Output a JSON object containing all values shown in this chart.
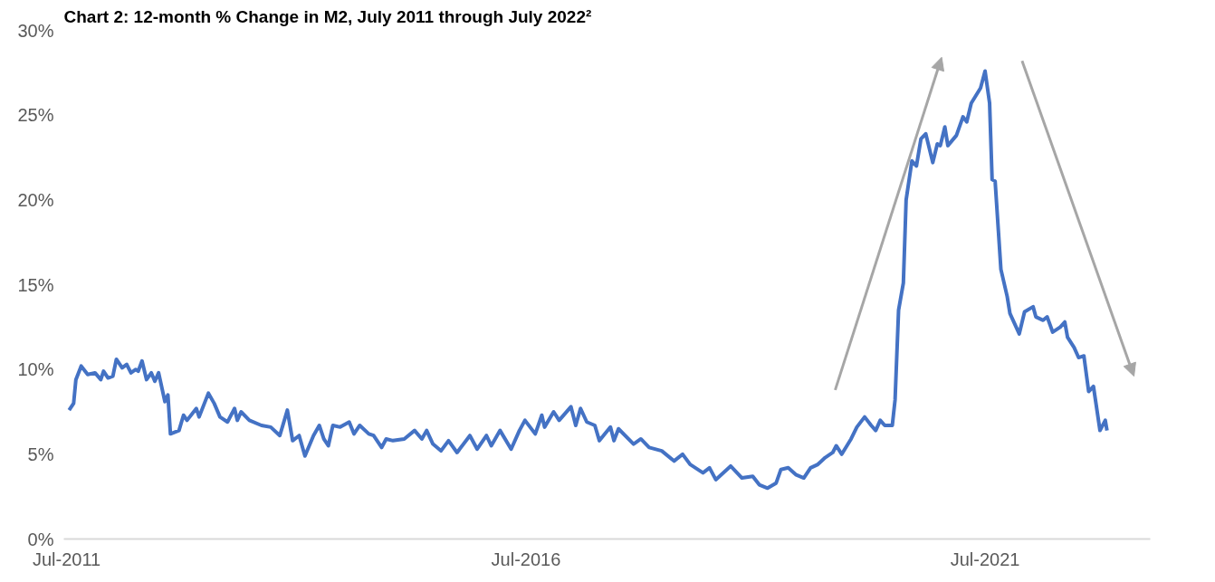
{
  "chart_data": {
    "type": "line",
    "title": "Chart 2: 12-month % Change in M2, July 2011 through July 2022²",
    "xlim": [
      "2011-06-20",
      "2023-04-19"
    ],
    "ylim": [
      0,
      30
    ],
    "xticks": [
      {
        "value": "2011-07-01",
        "label": "Jul-2011"
      },
      {
        "value": "2016-07-01",
        "label": "Jul-2016"
      },
      {
        "value": "2021-07-01",
        "label": "Jul-2021"
      }
    ],
    "yticks": [
      {
        "value": 0,
        "label": "0%"
      },
      {
        "value": 5,
        "label": "5%"
      },
      {
        "value": 10,
        "label": "10%"
      },
      {
        "value": 15,
        "label": "15%"
      },
      {
        "value": 20,
        "label": "20%"
      },
      {
        "value": 25,
        "label": "25%"
      },
      {
        "value": 30,
        "label": "30%"
      }
    ],
    "grid": false,
    "line_style": "solid",
    "series": [
      {
        "color": "#4472c4",
        "x": [
          "2011-07-11",
          "2011-07-29",
          "2011-08-07",
          "2011-08-28",
          "2011-09-23",
          "2011-10-22",
          "2011-11-14",
          "2011-11-25",
          "2011-12-13",
          "2012-01-01",
          "2012-01-15",
          "2012-02-07",
          "2012-02-25",
          "2012-03-13",
          "2012-04-01",
          "2012-04-11",
          "2012-04-26",
          "2012-05-14",
          "2012-06-02",
          "2012-06-16",
          "2012-07-01",
          "2012-07-26",
          "2012-08-07",
          "2012-08-17",
          "2012-09-20",
          "2012-10-08",
          "2012-10-22",
          "2012-11-28",
          "2012-12-09",
          "2013-01-15",
          "2013-02-07",
          "2013-03-02",
          "2013-04-01",
          "2013-04-29",
          "2013-05-10",
          "2013-05-25",
          "2013-06-27",
          "2013-08-14",
          "2013-09-20",
          "2013-10-26",
          "2013-11-25",
          "2013-12-16",
          "2014-01-11",
          "2014-02-03",
          "2014-03-09",
          "2014-04-01",
          "2014-04-19",
          "2014-05-07",
          "2014-05-25",
          "2014-06-23",
          "2014-07-29",
          "2014-08-17",
          "2014-09-09",
          "2014-10-15",
          "2014-11-03",
          "2014-12-05",
          "2014-12-23",
          "2015-01-19",
          "2015-03-05",
          "2015-04-15",
          "2015-05-14",
          "2015-06-02",
          "2015-06-27",
          "2015-07-29",
          "2015-08-28",
          "2015-10-01",
          "2015-11-21",
          "2015-12-20",
          "2016-01-26",
          "2016-02-14",
          "2016-03-20",
          "2016-05-03",
          "2016-06-05",
          "2016-06-27",
          "2016-08-07",
          "2016-09-02",
          "2016-09-13",
          "2016-10-19",
          "2016-11-10",
          "2016-12-27",
          "2017-01-15",
          "2017-02-03",
          "2017-02-28",
          "2017-04-01",
          "2017-04-19",
          "2017-06-02",
          "2017-06-16",
          "2017-07-04",
          "2017-09-02",
          "2017-10-01",
          "2017-11-03",
          "2017-12-23",
          "2018-02-10",
          "2018-03-16",
          "2018-04-15",
          "2018-06-05",
          "2018-07-01",
          "2018-07-26",
          "2018-09-23",
          "2018-11-07",
          "2018-12-20",
          "2019-01-15",
          "2019-02-17",
          "2019-03-23",
          "2019-04-11",
          "2019-05-10",
          "2019-06-09",
          "2019-07-11",
          "2019-08-07",
          "2019-09-05",
          "2019-10-04",
          "2019-11-03",
          "2019-11-17",
          "2019-12-09",
          "2020-01-15",
          "2020-02-07",
          "2020-03-09",
          "2020-04-04",
          "2020-04-22",
          "2020-05-10",
          "2020-05-28",
          "2020-06-27",
          "2020-07-08",
          "2020-07-22",
          "2020-08-10",
          "2020-08-21",
          "2020-09-13",
          "2020-10-01",
          "2020-10-19",
          "2020-11-07",
          "2020-12-05",
          "2020-12-23",
          "2021-01-04",
          "2021-01-22",
          "2021-02-03",
          "2021-03-09",
          "2021-04-04",
          "2021-04-19",
          "2021-05-07",
          "2021-06-13",
          "2021-07-01",
          "2021-07-19",
          "2021-07-29",
          "2021-08-10",
          "2021-09-02",
          "2021-09-27",
          "2021-10-08",
          "2021-11-14",
          "2021-12-05",
          "2022-01-08",
          "2022-01-19",
          "2022-02-17",
          "2022-03-05",
          "2022-03-27",
          "2022-04-26",
          "2022-05-14",
          "2022-05-25",
          "2022-06-20",
          "2022-07-08",
          "2022-07-29",
          "2022-08-17",
          "2022-09-05",
          "2022-10-01",
          "2022-10-22",
          "2022-10-29"
        ],
        "values": [
          7.6,
          8.0,
          9.4,
          10.2,
          9.7,
          9.8,
          9.4,
          9.9,
          9.5,
          9.6,
          10.6,
          10.1,
          10.3,
          9.8,
          10.0,
          9.9,
          10.5,
          9.4,
          9.8,
          9.3,
          9.8,
          8.1,
          8.5,
          6.2,
          6.4,
          7.3,
          7.0,
          7.7,
          7.2,
          8.6,
          8.0,
          7.2,
          6.9,
          7.7,
          7.0,
          7.5,
          7.0,
          6.7,
          6.6,
          6.1,
          7.6,
          5.8,
          6.1,
          4.9,
          6.1,
          6.7,
          5.9,
          5.5,
          6.7,
          6.6,
          6.9,
          6.2,
          6.7,
          6.2,
          6.1,
          5.4,
          5.9,
          5.8,
          5.9,
          6.4,
          5.9,
          6.4,
          5.6,
          5.2,
          5.8,
          5.1,
          6.1,
          5.3,
          6.1,
          5.5,
          6.4,
          5.3,
          6.4,
          7.0,
          6.2,
          7.3,
          6.6,
          7.5,
          7.0,
          7.8,
          6.7,
          7.7,
          6.9,
          6.7,
          5.8,
          6.6,
          5.8,
          6.5,
          5.6,
          5.9,
          5.4,
          5.2,
          4.6,
          5.0,
          4.4,
          3.9,
          4.2,
          3.5,
          4.3,
          3.6,
          3.7,
          3.2,
          3.0,
          3.3,
          4.1,
          4.2,
          3.8,
          3.6,
          4.2,
          4.4,
          4.8,
          5.1,
          5.5,
          5.0,
          5.9,
          6.6,
          7.2,
          6.7,
          6.4,
          7.0,
          6.7,
          6.7,
          8.2,
          13.5,
          15.1,
          20.0,
          22.3,
          22.0,
          23.6,
          23.9,
          22.2,
          23.3,
          23.2,
          24.3,
          23.2,
          23.8,
          24.9,
          24.6,
          25.7,
          26.6,
          27.6,
          25.7,
          21.2,
          21.1,
          15.9,
          14.3,
          13.3,
          12.1,
          13.4,
          13.7,
          13.1,
          12.9,
          13.1,
          12.2,
          12.5,
          12.8,
          11.9,
          11.3,
          10.7,
          10.8,
          8.7,
          9.0,
          6.4,
          7.0,
          6.4
        ]
      }
    ]
  }
}
